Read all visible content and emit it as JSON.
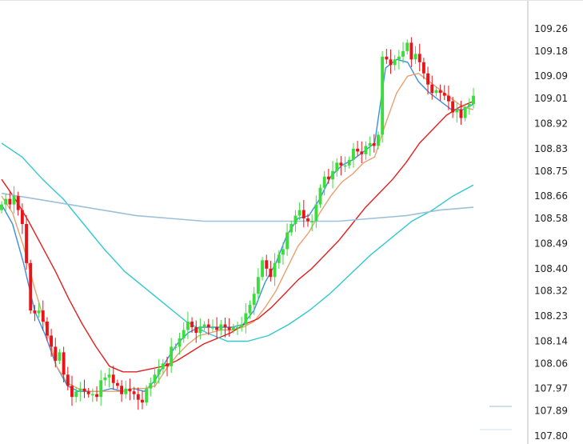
{
  "colors": {
    "up": "#3ddc3d",
    "down": "#e8141a",
    "ma_fast": "#3a8fe0",
    "ma_mid": "#e8a070",
    "ma_slow": "#e02020",
    "ma_slower": "#30c8d0",
    "ma_slowest": "#9cc0d8",
    "axis": "#bbbbbb"
  },
  "chart_data": {
    "type": "candlestick",
    "title": "",
    "xlabel": "",
    "ylabel": "",
    "ylim": [
      107.8,
      109.3
    ],
    "y_ticks": [
      "109.26",
      "109.18",
      "109.09",
      "109.01",
      "108.92",
      "108.83",
      "108.75",
      "108.66",
      "108.58",
      "108.49",
      "108.40",
      "108.32",
      "108.23",
      "108.14",
      "108.06",
      "107.97",
      "107.89",
      "107.80"
    ],
    "grid": false,
    "closes": [
      108.63,
      108.65,
      108.63,
      108.66,
      108.61,
      108.56,
      108.42,
      108.25,
      108.24,
      108.25,
      108.21,
      108.16,
      108.12,
      108.07,
      108.1,
      108.02,
      107.98,
      107.94,
      107.96,
      107.97,
      107.96,
      107.95,
      107.95,
      107.94,
      108.0,
      108.01,
      108.02,
      107.99,
      107.98,
      107.95,
      107.97,
      107.96,
      107.95,
      107.93,
      107.92,
      107.97,
      107.99,
      108.02,
      108.04,
      108.06,
      108.05,
      108.12,
      108.12,
      108.15,
      108.18,
      108.21,
      108.19,
      108.17,
      108.19,
      108.2,
      108.19,
      108.19,
      108.18,
      108.2,
      108.19,
      108.18,
      108.19,
      108.19,
      108.2,
      108.24,
      108.27,
      108.31,
      108.37,
      108.43,
      108.4,
      108.37,
      108.42,
      108.45,
      108.47,
      108.53,
      108.56,
      108.59,
      108.61,
      108.58,
      108.57,
      108.57,
      108.63,
      108.69,
      108.73,
      108.72,
      108.75,
      108.78,
      108.77,
      108.77,
      108.79,
      108.83,
      108.82,
      108.81,
      108.84,
      108.85,
      108.84,
      108.88,
      109.16,
      109.15,
      109.13,
      109.15,
      109.16,
      109.18,
      109.21,
      109.15,
      109.17,
      109.14,
      109.1,
      109.06,
      109.03,
      109.04,
      109.03,
      109.02,
      109.0,
      108.96,
      108.97,
      108.94,
      108.98,
      108.99,
      109.02
    ],
    "opens": [
      108.61,
      108.63,
      108.65,
      108.63,
      108.66,
      108.61,
      108.56,
      108.42,
      108.25,
      108.24,
      108.25,
      108.21,
      108.16,
      108.12,
      108.07,
      108.1,
      108.02,
      107.98,
      107.94,
      107.96,
      107.97,
      107.96,
      107.95,
      107.95,
      107.94,
      108.0,
      108.01,
      108.02,
      107.99,
      107.98,
      107.95,
      107.97,
      107.96,
      107.95,
      107.93,
      107.92,
      107.97,
      107.99,
      108.02,
      108.04,
      108.06,
      108.05,
      108.12,
      108.12,
      108.15,
      108.18,
      108.21,
      108.19,
      108.17,
      108.19,
      108.2,
      108.19,
      108.19,
      108.18,
      108.2,
      108.19,
      108.18,
      108.19,
      108.19,
      108.2,
      108.24,
      108.27,
      108.31,
      108.37,
      108.43,
      108.4,
      108.37,
      108.42,
      108.45,
      108.47,
      108.53,
      108.56,
      108.59,
      108.61,
      108.58,
      108.57,
      108.57,
      108.63,
      108.69,
      108.73,
      108.72,
      108.75,
      108.78,
      108.77,
      108.77,
      108.79,
      108.83,
      108.82,
      108.81,
      108.84,
      108.85,
      108.84,
      108.88,
      109.16,
      109.15,
      109.13,
      109.15,
      109.16,
      109.18,
      109.21,
      109.15,
      109.17,
      109.14,
      109.1,
      109.06,
      109.03,
      109.04,
      109.03,
      109.02,
      109.0,
      108.96,
      108.97,
      108.94,
      108.98,
      108.99
    ],
    "series": [
      {
        "values": [
          108.63,
          108.56,
          108.42,
          108.25,
          108.16,
          108.05,
          107.98,
          107.96,
          107.96,
          107.96,
          107.97,
          107.96,
          107.97,
          107.96,
          108.0,
          108.07,
          108.13,
          108.17,
          108.19,
          108.19,
          108.19,
          108.19,
          108.2,
          108.25,
          108.35,
          108.42,
          108.52,
          108.58,
          108.59,
          108.65,
          108.73,
          108.77,
          108.79,
          108.82,
          108.85,
          109.12,
          109.15,
          109.14,
          109.07,
          109.03,
          109.0,
          108.97,
          108.97,
          108.99
        ]
      },
      {
        "values": [
          108.66,
          108.6,
          108.48,
          108.33,
          108.2,
          108.05,
          107.99,
          107.97,
          107.96,
          107.96,
          107.96,
          107.96,
          107.97,
          107.97,
          107.98,
          108.04,
          108.09,
          108.13,
          108.16,
          108.17,
          108.18,
          108.18,
          108.19,
          108.21,
          108.26,
          108.32,
          108.4,
          108.48,
          108.53,
          108.6,
          108.66,
          108.71,
          108.74,
          108.78,
          108.8,
          108.92,
          109.03,
          109.09,
          109.1,
          109.07,
          109.04,
          109.01,
          108.98,
          108.97
        ]
      },
      {
        "values": [
          108.72,
          108.65,
          108.57,
          108.48,
          108.39,
          108.29,
          108.2,
          108.12,
          108.05,
          108.03,
          108.03,
          108.04,
          108.05,
          108.07,
          108.1,
          108.13,
          108.15,
          108.17,
          108.2,
          108.22,
          108.26,
          108.31,
          108.36,
          108.4,
          108.45,
          108.5,
          108.56,
          108.62,
          108.67,
          108.72,
          108.78,
          108.85,
          108.9,
          108.95,
          108.98,
          109.0
        ]
      },
      {
        "values": [
          108.85,
          108.8,
          108.72,
          108.65,
          108.56,
          108.47,
          108.39,
          108.33,
          108.27,
          108.21,
          108.17,
          108.14,
          108.14,
          108.16,
          108.2,
          108.25,
          108.31,
          108.38,
          108.45,
          108.51,
          108.57,
          108.61,
          108.66,
          108.7
        ]
      },
      {
        "values": [
          108.67,
          108.65,
          108.63,
          108.61,
          108.59,
          108.58,
          108.57,
          108.57,
          108.57,
          108.57,
          108.57,
          108.58,
          108.59,
          108.61,
          108.62
        ]
      }
    ]
  }
}
